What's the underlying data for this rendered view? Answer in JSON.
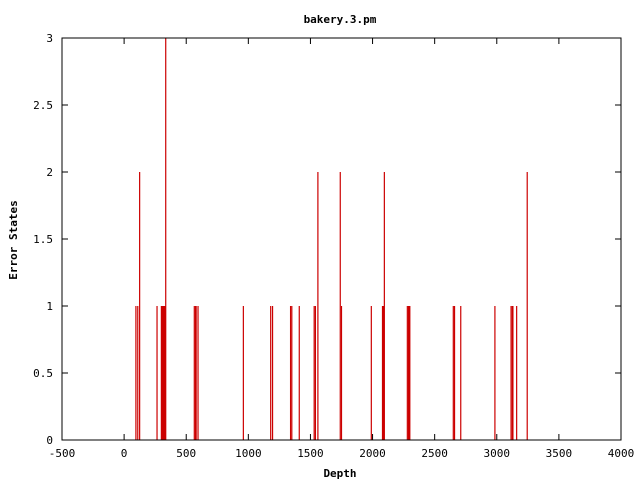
{
  "chart_data": {
    "type": "bar",
    "title": "bakery.3.pm",
    "xlabel": "Depth",
    "ylabel": "Error States",
    "xlim": [
      -500,
      4000
    ],
    "ylim": [
      0,
      3
    ],
    "x_ticks": [
      "-500",
      "0",
      "500",
      "1000",
      "1500",
      "2000",
      "2500",
      "3000",
      "3500",
      "4000"
    ],
    "y_ticks": [
      "0",
      "0.5",
      "1",
      "1.5",
      "2",
      "2.5",
      "3"
    ],
    "grid": false,
    "bar_color": "#cc0000",
    "points": [
      {
        "x": 95,
        "y": 1
      },
      {
        "x": 110,
        "y": 1
      },
      {
        "x": 125,
        "y": 2
      },
      {
        "x": 265,
        "y": 1
      },
      {
        "x": 300,
        "y": 1
      },
      {
        "x": 305,
        "y": 1
      },
      {
        "x": 310,
        "y": 1
      },
      {
        "x": 315,
        "y": 1
      },
      {
        "x": 320,
        "y": 1
      },
      {
        "x": 325,
        "y": 1
      },
      {
        "x": 330,
        "y": 1
      },
      {
        "x": 335,
        "y": 3
      },
      {
        "x": 565,
        "y": 1
      },
      {
        "x": 575,
        "y": 1
      },
      {
        "x": 580,
        "y": 1
      },
      {
        "x": 595,
        "y": 1
      },
      {
        "x": 960,
        "y": 1
      },
      {
        "x": 1180,
        "y": 1
      },
      {
        "x": 1195,
        "y": 1
      },
      {
        "x": 1340,
        "y": 1
      },
      {
        "x": 1350,
        "y": 1
      },
      {
        "x": 1410,
        "y": 1
      },
      {
        "x": 1530,
        "y": 1
      },
      {
        "x": 1540,
        "y": 1
      },
      {
        "x": 1560,
        "y": 2
      },
      {
        "x": 1740,
        "y": 2
      },
      {
        "x": 1750,
        "y": 1
      },
      {
        "x": 1990,
        "y": 1
      },
      {
        "x": 2080,
        "y": 1
      },
      {
        "x": 2085,
        "y": 1
      },
      {
        "x": 2090,
        "y": 1
      },
      {
        "x": 2095,
        "y": 2
      },
      {
        "x": 2280,
        "y": 1
      },
      {
        "x": 2290,
        "y": 1
      },
      {
        "x": 2295,
        "y": 1
      },
      {
        "x": 2300,
        "y": 1
      },
      {
        "x": 2650,
        "y": 1
      },
      {
        "x": 2660,
        "y": 1
      },
      {
        "x": 2710,
        "y": 1
      },
      {
        "x": 2985,
        "y": 1
      },
      {
        "x": 3115,
        "y": 1
      },
      {
        "x": 3125,
        "y": 1
      },
      {
        "x": 3130,
        "y": 1
      },
      {
        "x": 3160,
        "y": 1
      },
      {
        "x": 3245,
        "y": 2
      }
    ]
  }
}
